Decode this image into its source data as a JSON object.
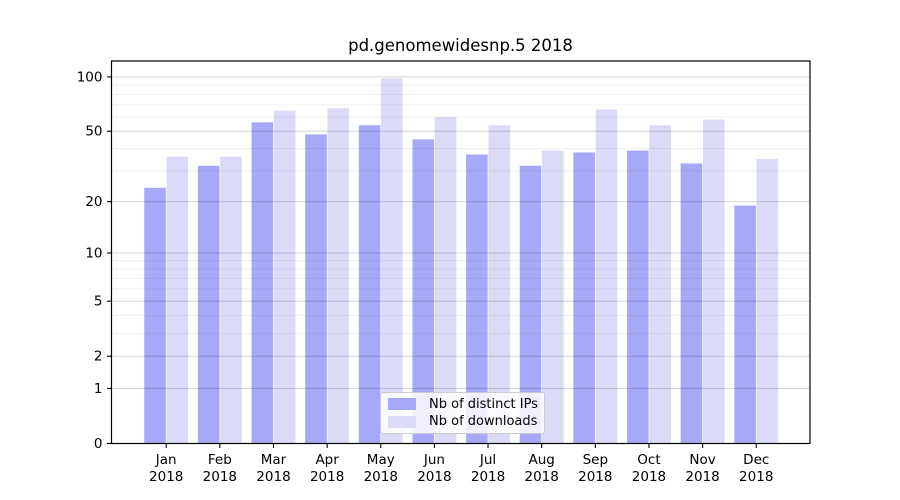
{
  "figure": {
    "background": "#ffffff"
  },
  "chart_data": {
    "type": "bar",
    "title": "pd.genomewidesnp.5 2018",
    "categories": [
      "Jan",
      "Feb",
      "Mar",
      "Apr",
      "May",
      "Jun",
      "Jul",
      "Aug",
      "Sep",
      "Oct",
      "Nov",
      "Dec"
    ],
    "year_label": "2018",
    "series": [
      {
        "name": "Nb of distinct IPs",
        "color": "#a8a8f8",
        "values": [
          24,
          32,
          56,
          48,
          54,
          45,
          37,
          32,
          38,
          39,
          33,
          19
        ]
      },
      {
        "name": "Nb of downloads",
        "color": "#dbdbf8",
        "values": [
          36,
          36,
          65,
          67,
          98,
          60,
          54,
          39,
          66,
          54,
          58,
          35
        ]
      }
    ],
    "yscale": "log1p",
    "ylabel": "",
    "xlabel": "",
    "ylim": [
      0,
      122
    ],
    "y_major_ticks": [
      100,
      50,
      20,
      10,
      5,
      2,
      1,
      0
    ],
    "y_minor_gridlines": [
      3,
      4,
      6,
      7,
      8,
      9,
      30,
      40,
      60,
      70,
      80,
      90
    ],
    "grid": true,
    "legend_position": "lower center",
    "colors": {
      "spine": "#000000",
      "tick": "#000000",
      "grid_major": "rgba(0,0,0,0.15)",
      "grid_minor": "rgba(0,0,0,0.06)",
      "text": "#000000"
    }
  }
}
